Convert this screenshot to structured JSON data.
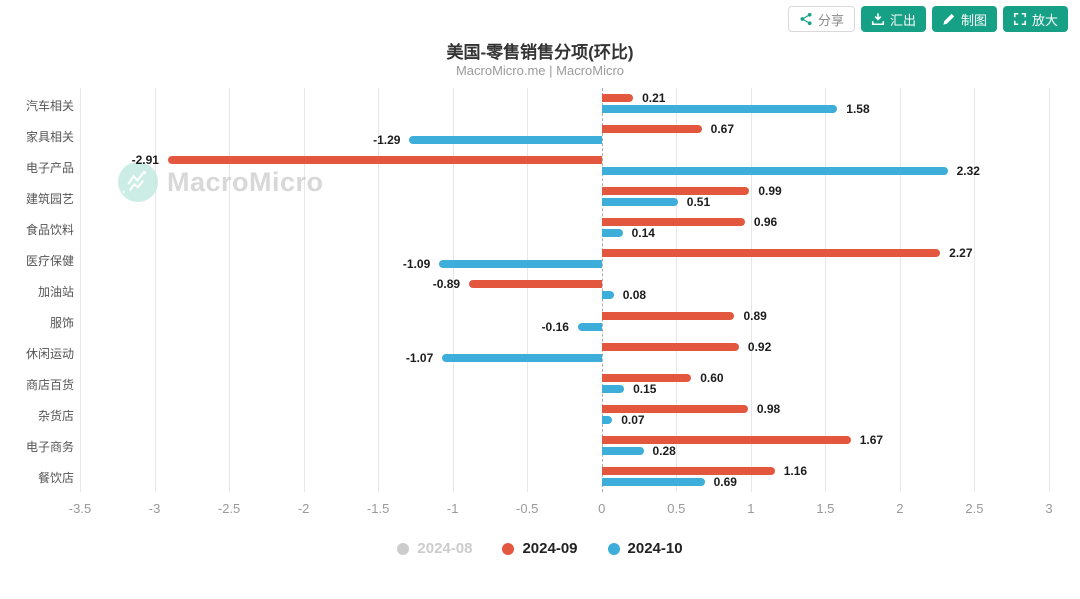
{
  "title": "美国-零售销售分项(环比)",
  "subtitle": "MacroMicro.me | MacroMicro",
  "toolbar": {
    "share_label": "分享",
    "export_label": "汇出",
    "draw_label": "制图",
    "zoom_label": "放大"
  },
  "watermark": {
    "text": "MacroMicro"
  },
  "colors": {
    "teal": "#16a085",
    "series_2024_08": "#cccccc",
    "series_2024_09": "#e4573f",
    "series_2024_10": "#3dadd9",
    "gridline": "#e7e7e7",
    "zeroline": "#ababab"
  },
  "chart_data": {
    "type": "bar",
    "orientation": "horizontal",
    "title": "美国-零售销售分项(环比)",
    "subtitle": "MacroMicro.me | MacroMicro",
    "categories": [
      "汽车相关",
      "家具相关",
      "电子产品",
      "建筑园艺",
      "食品饮料",
      "医疗保健",
      "加油站",
      "服饰",
      "休闲运动",
      "商店百货",
      "杂货店",
      "电子商务",
      "餐饮店"
    ],
    "series": [
      {
        "name": "2024-08",
        "color": "#cccccc",
        "disabled": true,
        "values": null
      },
      {
        "name": "2024-09",
        "color": "#e4573f",
        "disabled": false,
        "values": [
          0.21,
          0.67,
          -2.91,
          0.99,
          0.96,
          2.27,
          -0.89,
          0.89,
          0.92,
          0.6,
          0.98,
          1.67,
          1.16
        ]
      },
      {
        "name": "2024-10",
        "color": "#3dadd9",
        "disabled": false,
        "values": [
          1.58,
          -1.29,
          2.32,
          0.51,
          0.14,
          -1.09,
          0.08,
          -0.16,
          -1.07,
          0.15,
          0.07,
          0.28,
          0.69
        ]
      }
    ],
    "xlim": [
      -3.5,
      3
    ],
    "xticks": [
      -3.5,
      -3,
      -2.5,
      -2,
      -1.5,
      -1,
      -0.5,
      0,
      0.5,
      1,
      1.5,
      2,
      2.5,
      3
    ],
    "grid": true,
    "value_labels": true,
    "legend_position": "bottom"
  }
}
